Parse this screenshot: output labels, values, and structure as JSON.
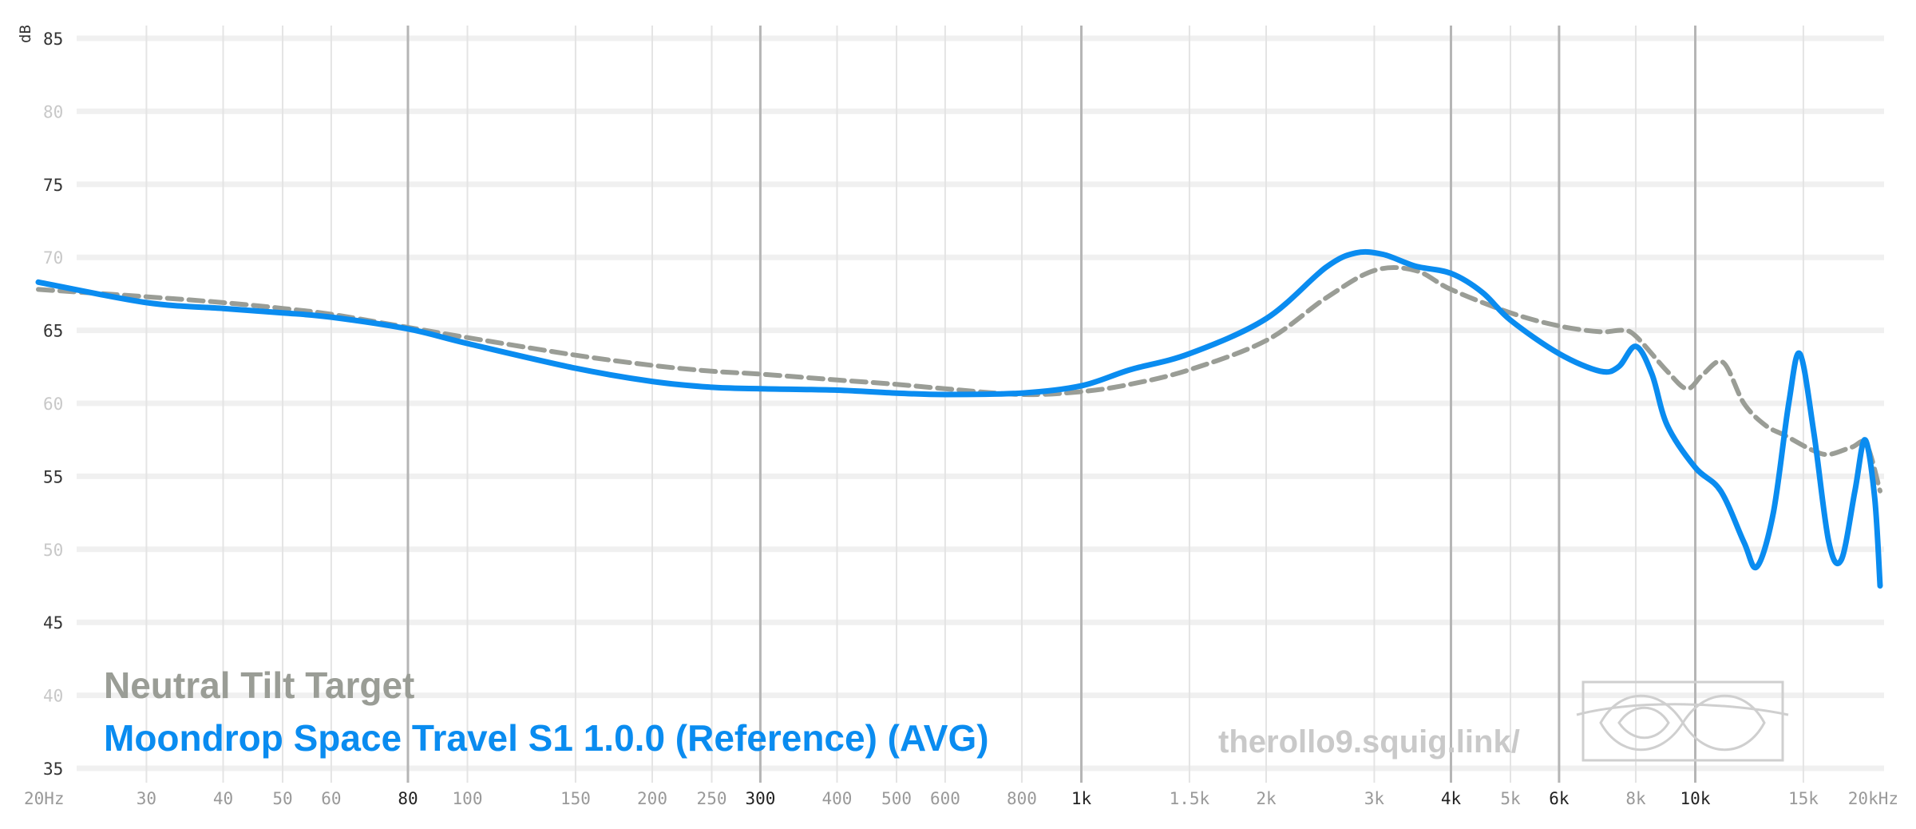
{
  "chart_data": {
    "type": "line",
    "title": "",
    "xlabel": "",
    "ylabel": "dB",
    "xscale": "log",
    "xlim": [
      20,
      20000
    ],
    "ylim": [
      35,
      85
    ],
    "grid": true,
    "legend_position": "bottom-left",
    "y_ticks": [
      {
        "value": 85,
        "label": "85",
        "strong": true
      },
      {
        "value": 80,
        "label": "80",
        "strong": false
      },
      {
        "value": 75,
        "label": "75",
        "strong": true
      },
      {
        "value": 70,
        "label": "70",
        "strong": false
      },
      {
        "value": 65,
        "label": "65",
        "strong": true
      },
      {
        "value": 60,
        "label": "60",
        "strong": false
      },
      {
        "value": 55,
        "label": "55",
        "strong": true
      },
      {
        "value": 50,
        "label": "50",
        "strong": false
      },
      {
        "value": 45,
        "label": "45",
        "strong": true
      },
      {
        "value": 40,
        "label": "40",
        "strong": false
      },
      {
        "value": 35,
        "label": "35",
        "strong": true
      }
    ],
    "x_ticks": [
      {
        "value": 20,
        "label": "20Hz",
        "strong": false
      },
      {
        "value": 30,
        "label": "30",
        "strong": false
      },
      {
        "value": 40,
        "label": "40",
        "strong": false
      },
      {
        "value": 50,
        "label": "50",
        "strong": false
      },
      {
        "value": 60,
        "label": "60",
        "strong": false
      },
      {
        "value": 80,
        "label": "80",
        "strong": true
      },
      {
        "value": 100,
        "label": "100",
        "strong": false
      },
      {
        "value": 150,
        "label": "150",
        "strong": false
      },
      {
        "value": 200,
        "label": "200",
        "strong": false
      },
      {
        "value": 250,
        "label": "250",
        "strong": false
      },
      {
        "value": 300,
        "label": "300",
        "strong": true
      },
      {
        "value": 400,
        "label": "400",
        "strong": false
      },
      {
        "value": 500,
        "label": "500",
        "strong": false
      },
      {
        "value": 600,
        "label": "600",
        "strong": false
      },
      {
        "value": 800,
        "label": "800",
        "strong": false
      },
      {
        "value": 1000,
        "label": "1k",
        "strong": true
      },
      {
        "value": 1500,
        "label": "1.5k",
        "strong": false
      },
      {
        "value": 2000,
        "label": "2k",
        "strong": false
      },
      {
        "value": 3000,
        "label": "3k",
        "strong": false
      },
      {
        "value": 4000,
        "label": "4k",
        "strong": true
      },
      {
        "value": 5000,
        "label": "5k",
        "strong": false
      },
      {
        "value": 6000,
        "label": "6k",
        "strong": true
      },
      {
        "value": 8000,
        "label": "8k",
        "strong": false
      },
      {
        "value": 10000,
        "label": "10k",
        "strong": true
      },
      {
        "value": 15000,
        "label": "15k",
        "strong": false
      },
      {
        "value": 20000,
        "label": "20kHz",
        "strong": false
      }
    ],
    "series": [
      {
        "name": "Neutral Tilt Target",
        "color": "#9a9d96",
        "dashed": true,
        "points": [
          [
            20,
            67.8
          ],
          [
            30,
            67.3
          ],
          [
            40,
            66.9
          ],
          [
            50,
            66.5
          ],
          [
            60,
            66.1
          ],
          [
            80,
            65.2
          ],
          [
            100,
            64.5
          ],
          [
            150,
            63.3
          ],
          [
            200,
            62.6
          ],
          [
            250,
            62.2
          ],
          [
            300,
            62.0
          ],
          [
            400,
            61.6
          ],
          [
            500,
            61.3
          ],
          [
            600,
            61.0
          ],
          [
            800,
            60.6
          ],
          [
            1000,
            60.8
          ],
          [
            1200,
            61.3
          ],
          [
            1500,
            62.3
          ],
          [
            2000,
            64.3
          ],
          [
            2500,
            67.2
          ],
          [
            3000,
            69.1
          ],
          [
            3500,
            69.1
          ],
          [
            4000,
            67.8
          ],
          [
            5000,
            66.2
          ],
          [
            6000,
            65.3
          ],
          [
            7000,
            64.9
          ],
          [
            7600,
            65.0
          ],
          [
            8000,
            64.6
          ],
          [
            9000,
            62.2
          ],
          [
            9700,
            61.0
          ],
          [
            10300,
            62.0
          ],
          [
            11100,
            62.8
          ],
          [
            12000,
            60.0
          ],
          [
            13000,
            58.5
          ],
          [
            14000,
            57.8
          ],
          [
            15500,
            56.8
          ],
          [
            16500,
            56.5
          ],
          [
            18000,
            57.0
          ],
          [
            19000,
            57.2
          ],
          [
            20000,
            54.0
          ]
        ]
      },
      {
        "name": "Moondrop Space Travel S1 1.0.0 (Reference) (AVG)",
        "color": "#0a8cf0",
        "dashed": false,
        "points": [
          [
            20,
            68.3
          ],
          [
            30,
            66.9
          ],
          [
            40,
            66.5
          ],
          [
            50,
            66.2
          ],
          [
            60,
            65.9
          ],
          [
            80,
            65.1
          ],
          [
            100,
            64.1
          ],
          [
            150,
            62.4
          ],
          [
            200,
            61.5
          ],
          [
            250,
            61.1
          ],
          [
            300,
            61.0
          ],
          [
            400,
            60.9
          ],
          [
            500,
            60.7
          ],
          [
            600,
            60.6
          ],
          [
            800,
            60.7
          ],
          [
            1000,
            61.2
          ],
          [
            1200,
            62.3
          ],
          [
            1500,
            63.4
          ],
          [
            2000,
            65.8
          ],
          [
            2500,
            69.3
          ],
          [
            2800,
            70.3
          ],
          [
            3100,
            70.2
          ],
          [
            3500,
            69.4
          ],
          [
            4000,
            68.9
          ],
          [
            4500,
            67.6
          ],
          [
            5000,
            65.7
          ],
          [
            6000,
            63.4
          ],
          [
            7000,
            62.2
          ],
          [
            7500,
            62.5
          ],
          [
            8000,
            63.9
          ],
          [
            8500,
            62.0
          ],
          [
            9000,
            58.5
          ],
          [
            10000,
            55.6
          ],
          [
            11000,
            54.0
          ],
          [
            12000,
            50.5
          ],
          [
            12600,
            48.8
          ],
          [
            13400,
            52.5
          ],
          [
            14200,
            60.0
          ],
          [
            14800,
            63.4
          ],
          [
            15600,
            58.0
          ],
          [
            16500,
            50.5
          ],
          [
            17300,
            49.3
          ],
          [
            18200,
            54.0
          ],
          [
            18900,
            57.5
          ],
          [
            19600,
            53.5
          ],
          [
            20000,
            47.5
          ]
        ]
      }
    ]
  },
  "legend": {
    "target_label": "Neutral Tilt Target",
    "model_label": "Moondrop Space Travel S1 1.0.0 (Reference) (AVG)"
  },
  "watermark": {
    "text": "therollo9.squig.link/"
  }
}
